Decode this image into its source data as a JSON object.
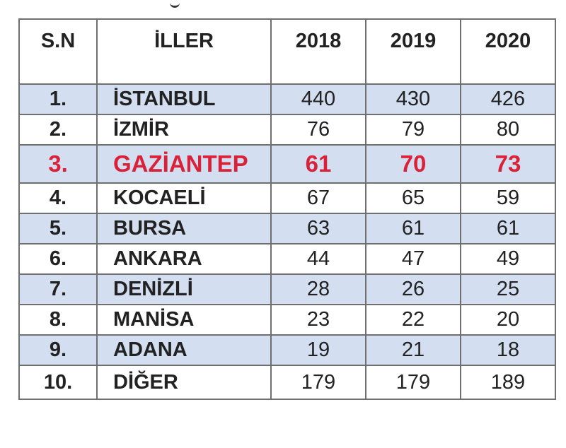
{
  "table": {
    "headers": {
      "sn": "S.N",
      "il": "İLLER",
      "y2018": "2018",
      "y2019": "2019",
      "y2020": "2020"
    },
    "rows": [
      {
        "sn": "1.",
        "il": "İSTANBUL",
        "y2018": "440",
        "y2019": "430",
        "y2020": "426"
      },
      {
        "sn": "2.",
        "il": "İZMİR",
        "y2018": "76",
        "y2019": "79",
        "y2020": "80"
      },
      {
        "sn": "3.",
        "il": "GAZİANTEP",
        "y2018": "61",
        "y2019": "70",
        "y2020": "73"
      },
      {
        "sn": "4.",
        "il": "KOCAELİ",
        "y2018": "67",
        "y2019": "65",
        "y2020": "59"
      },
      {
        "sn": "5.",
        "il": "BURSA",
        "y2018": "63",
        "y2019": "61",
        "y2020": "61"
      },
      {
        "sn": "6.",
        "il": "ANKARA",
        "y2018": "44",
        "y2019": "47",
        "y2020": "49"
      },
      {
        "sn": "7.",
        "il": "DENİZLİ",
        "y2018": "28",
        "y2019": "26",
        "y2020": "25"
      },
      {
        "sn": "8.",
        "il": "MANİSA",
        "y2018": "23",
        "y2019": "22",
        "y2020": "20"
      },
      {
        "sn": "9.",
        "il": "ADANA",
        "y2018": "19",
        "y2019": "21",
        "y2020": "18"
      },
      {
        "sn": "10.",
        "il": "DİĞER",
        "y2018": "179",
        "y2019": "179",
        "y2020": "189"
      }
    ]
  },
  "colors": {
    "shaded_row": "#d3dff0",
    "highlight_text": "#d9213a",
    "border": "#6f6f6f"
  }
}
